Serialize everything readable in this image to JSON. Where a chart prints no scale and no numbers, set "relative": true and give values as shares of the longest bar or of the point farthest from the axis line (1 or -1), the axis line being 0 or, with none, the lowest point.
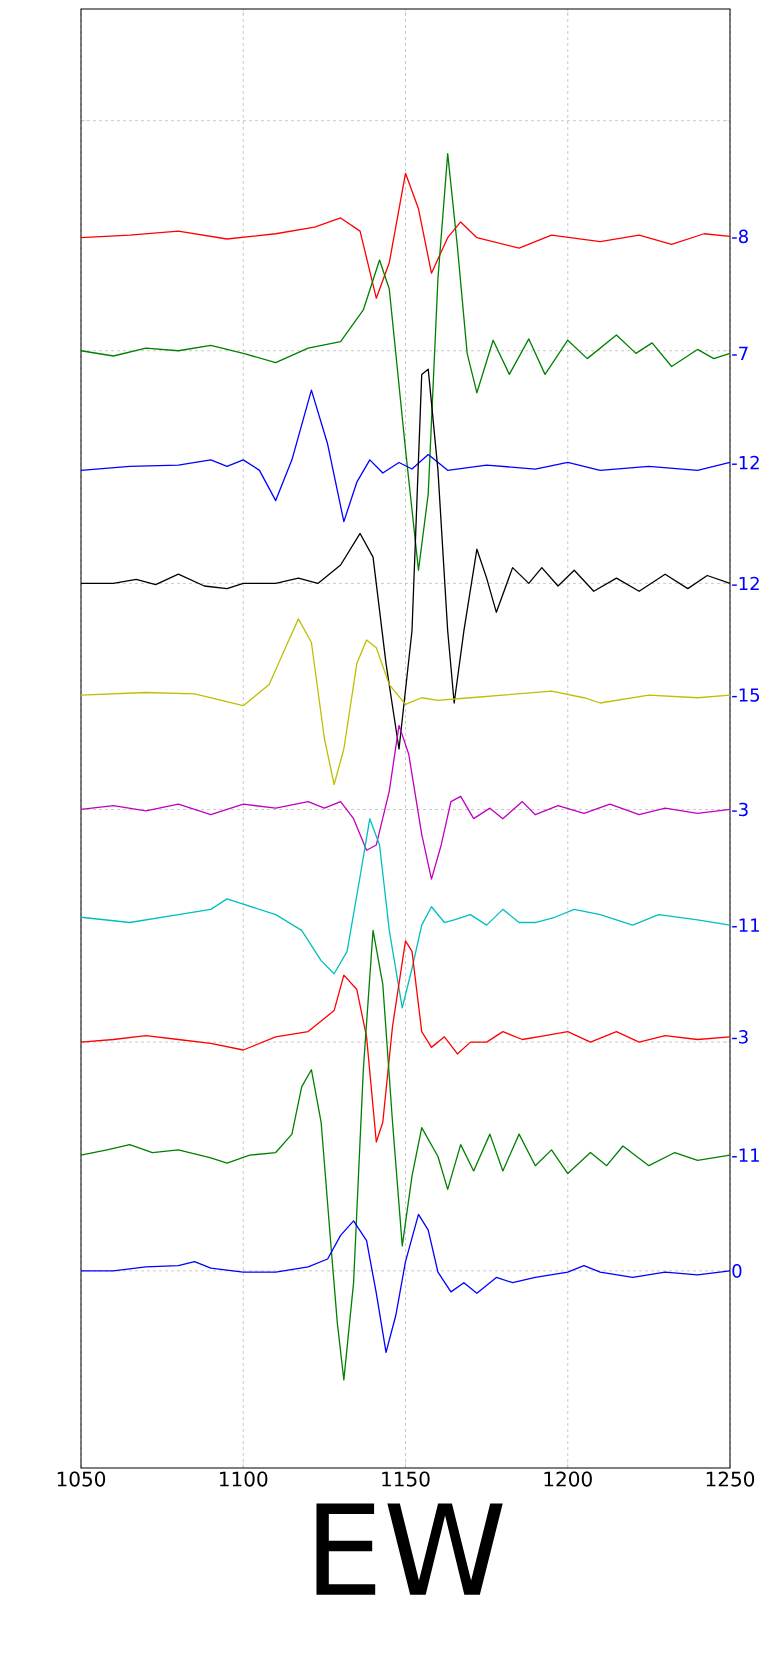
{
  "chart_data": {
    "type": "line",
    "xlabel": "EW",
    "relative": true,
    "xlim": [
      1050,
      1250
    ],
    "xticks": [
      1050,
      1100,
      1150,
      1200,
      1250
    ],
    "grid": true,
    "series": [
      {
        "name": "-8",
        "color": "#ff0000",
        "x": [
          1050,
          1065,
          1080,
          1095,
          1110,
          1122,
          1130,
          1136,
          1141,
          1145,
          1150,
          1154,
          1158,
          1163,
          1167,
          1172,
          1185,
          1195,
          1210,
          1222,
          1232,
          1242,
          1250
        ],
        "values": [
          0.936,
          0.938,
          0.941,
          0.935,
          0.939,
          0.944,
          0.951,
          0.941,
          0.89,
          0.917,
          0.985,
          0.958,
          0.909,
          0.936,
          0.948,
          0.936,
          0.928,
          0.938,
          0.933,
          0.938,
          0.931,
          0.939,
          0.937
        ]
      },
      {
        "name": "-7",
        "color": "#008000",
        "x": [
          1050,
          1060,
          1070,
          1080,
          1090,
          1100,
          1110,
          1120,
          1130,
          1137,
          1142,
          1145,
          1150,
          1154,
          1157,
          1160,
          1163,
          1166,
          1169,
          1172,
          1177,
          1182,
          1188,
          1193,
          1200,
          1206,
          1215,
          1221,
          1226,
          1232,
          1240,
          1245,
          1250
        ],
        "values": [
          0.85,
          0.846,
          0.852,
          0.85,
          0.854,
          0.848,
          0.841,
          0.852,
          0.857,
          0.881,
          0.919,
          0.897,
          0.775,
          0.683,
          0.741,
          0.905,
          1.0,
          0.929,
          0.848,
          0.818,
          0.858,
          0.832,
          0.859,
          0.832,
          0.858,
          0.844,
          0.862,
          0.848,
          0.856,
          0.838,
          0.851,
          0.844,
          0.848
        ]
      },
      {
        "name": "-12",
        "color": "#0000ff",
        "x": [
          1050,
          1065,
          1080,
          1090,
          1095,
          1100,
          1105,
          1110,
          1115,
          1121,
          1126,
          1131,
          1135,
          1139,
          1143,
          1148,
          1152,
          1157,
          1163,
          1175,
          1190,
          1200,
          1210,
          1225,
          1240,
          1250
        ],
        "values": [
          0.759,
          0.762,
          0.763,
          0.767,
          0.762,
          0.767,
          0.759,
          0.736,
          0.767,
          0.82,
          0.779,
          0.72,
          0.75,
          0.767,
          0.757,
          0.765,
          0.76,
          0.771,
          0.759,
          0.763,
          0.76,
          0.765,
          0.759,
          0.762,
          0.759,
          0.765
        ]
      },
      {
        "name": "-12",
        "color": "#000000",
        "x": [
          1050,
          1060,
          1067,
          1073,
          1080,
          1088,
          1095,
          1100,
          1110,
          1117,
          1123,
          1130,
          1136,
          1140,
          1144,
          1148,
          1152,
          1155,
          1157,
          1160,
          1163,
          1165,
          1168,
          1172,
          1175,
          1178,
          1183,
          1188,
          1192,
          1197,
          1202,
          1208,
          1215,
          1222,
          1230,
          1237,
          1243,
          1250
        ],
        "values": [
          0.673,
          0.673,
          0.676,
          0.672,
          0.68,
          0.671,
          0.669,
          0.673,
          0.673,
          0.677,
          0.673,
          0.687,
          0.711,
          0.693,
          0.612,
          0.547,
          0.637,
          0.832,
          0.836,
          0.759,
          0.637,
          0.582,
          0.637,
          0.699,
          0.677,
          0.651,
          0.685,
          0.673,
          0.685,
          0.671,
          0.683,
          0.667,
          0.677,
          0.667,
          0.68,
          0.669,
          0.679,
          0.673
        ]
      },
      {
        "name": "-15",
        "color": "#bfbf00",
        "x": [
          1050,
          1070,
          1085,
          1100,
          1108,
          1113,
          1117,
          1121,
          1125,
          1128,
          1131,
          1135,
          1138,
          1141,
          1145,
          1150,
          1155,
          1160,
          1170,
          1180,
          1195,
          1205,
          1210,
          1225,
          1240,
          1250
        ],
        "values": [
          0.588,
          0.59,
          0.589,
          0.58,
          0.596,
          0.624,
          0.646,
          0.628,
          0.555,
          0.52,
          0.547,
          0.612,
          0.63,
          0.624,
          0.596,
          0.581,
          0.586,
          0.584,
          0.586,
          0.588,
          0.591,
          0.586,
          0.582,
          0.588,
          0.586,
          0.588
        ]
      },
      {
        "name": "-3",
        "color": "#bf00bf",
        "x": [
          1050,
          1060,
          1070,
          1080,
          1090,
          1100,
          1110,
          1120,
          1125,
          1130,
          1134,
          1138,
          1141,
          1145,
          1148,
          1151,
          1155,
          1158,
          1161,
          1164,
          1167,
          1171,
          1176,
          1180,
          1186,
          1190,
          1197,
          1205,
          1213,
          1222,
          1230,
          1240,
          1250
        ],
        "values": [
          0.501,
          0.504,
          0.5,
          0.505,
          0.497,
          0.505,
          0.502,
          0.507,
          0.502,
          0.507,
          0.494,
          0.47,
          0.474,
          0.515,
          0.565,
          0.543,
          0.482,
          0.448,
          0.474,
          0.507,
          0.511,
          0.494,
          0.502,
          0.494,
          0.507,
          0.497,
          0.504,
          0.498,
          0.505,
          0.497,
          0.502,
          0.498,
          0.501
        ]
      },
      {
        "name": "-11",
        "color": "#00bfbf",
        "x": [
          1050,
          1065,
          1080,
          1090,
          1095,
          1100,
          1110,
          1118,
          1124,
          1128,
          1132,
          1136,
          1139,
          1142,
          1145,
          1149,
          1152,
          1155,
          1158,
          1162,
          1165,
          1170,
          1175,
          1180,
          1185,
          1190,
          1196,
          1202,
          1210,
          1220,
          1228,
          1240,
          1250
        ],
        "values": [
          0.419,
          0.415,
          0.421,
          0.425,
          0.433,
          0.429,
          0.421,
          0.409,
          0.386,
          0.376,
          0.393,
          0.45,
          0.494,
          0.474,
          0.409,
          0.35,
          0.38,
          0.413,
          0.427,
          0.415,
          0.417,
          0.421,
          0.413,
          0.425,
          0.415,
          0.415,
          0.419,
          0.425,
          0.421,
          0.413,
          0.421,
          0.417,
          0.413
        ]
      },
      {
        "name": "-3",
        "color": "#ff0000",
        "x": [
          1050,
          1060,
          1070,
          1080,
          1090,
          1100,
          1110,
          1120,
          1128,
          1131,
          1135,
          1138,
          1141,
          1143,
          1146,
          1150,
          1152,
          1155,
          1158,
          1162,
          1166,
          1170,
          1175,
          1180,
          1186,
          1193,
          1200,
          1207,
          1215,
          1222,
          1230,
          1240,
          1250
        ],
        "values": [
          0.324,
          0.326,
          0.329,
          0.326,
          0.323,
          0.318,
          0.328,
          0.332,
          0.348,
          0.375,
          0.364,
          0.328,
          0.248,
          0.263,
          0.336,
          0.401,
          0.393,
          0.332,
          0.32,
          0.328,
          0.315,
          0.324,
          0.324,
          0.332,
          0.326,
          0.329,
          0.332,
          0.324,
          0.332,
          0.324,
          0.329,
          0.326,
          0.328
        ]
      },
      {
        "name": "-11",
        "color": "#008000",
        "x": [
          1050,
          1058,
          1065,
          1072,
          1080,
          1090,
          1095,
          1102,
          1110,
          1115,
          1118,
          1121,
          1124,
          1127,
          1129,
          1131,
          1134,
          1137,
          1140,
          1143,
          1146,
          1149,
          1152,
          1155,
          1160,
          1163,
          1167,
          1171,
          1176,
          1180,
          1185,
          1190,
          1195,
          1200,
          1207,
          1212,
          1217,
          1225,
          1233,
          1240,
          1250
        ],
        "values": [
          0.238,
          0.242,
          0.246,
          0.24,
          0.242,
          0.236,
          0.232,
          0.238,
          0.24,
          0.254,
          0.29,
          0.303,
          0.263,
          0.17,
          0.11,
          0.067,
          0.141,
          0.303,
          0.409,
          0.368,
          0.263,
          0.169,
          0.222,
          0.259,
          0.237,
          0.212,
          0.246,
          0.226,
          0.254,
          0.226,
          0.254,
          0.23,
          0.242,
          0.224,
          0.24,
          0.23,
          0.245,
          0.23,
          0.24,
          0.234,
          0.238
        ]
      },
      {
        "name": "0",
        "color": "#0000ff",
        "x": [
          1050,
          1060,
          1070,
          1080,
          1085,
          1090,
          1100,
          1110,
          1120,
          1126,
          1130,
          1134,
          1138,
          1141,
          1144,
          1147,
          1150,
          1154,
          1157,
          1160,
          1164,
          1168,
          1172,
          1178,
          1183,
          1190,
          1200,
          1205,
          1210,
          1220,
          1230,
          1240,
          1250
        ],
        "values": [
          0.15,
          0.15,
          0.153,
          0.154,
          0.157,
          0.152,
          0.149,
          0.149,
          0.153,
          0.159,
          0.177,
          0.188,
          0.173,
          0.133,
          0.088,
          0.116,
          0.157,
          0.193,
          0.181,
          0.149,
          0.134,
          0.141,
          0.133,
          0.145,
          0.141,
          0.145,
          0.149,
          0.154,
          0.149,
          0.145,
          0.149,
          0.147,
          0.15
        ]
      }
    ]
  }
}
